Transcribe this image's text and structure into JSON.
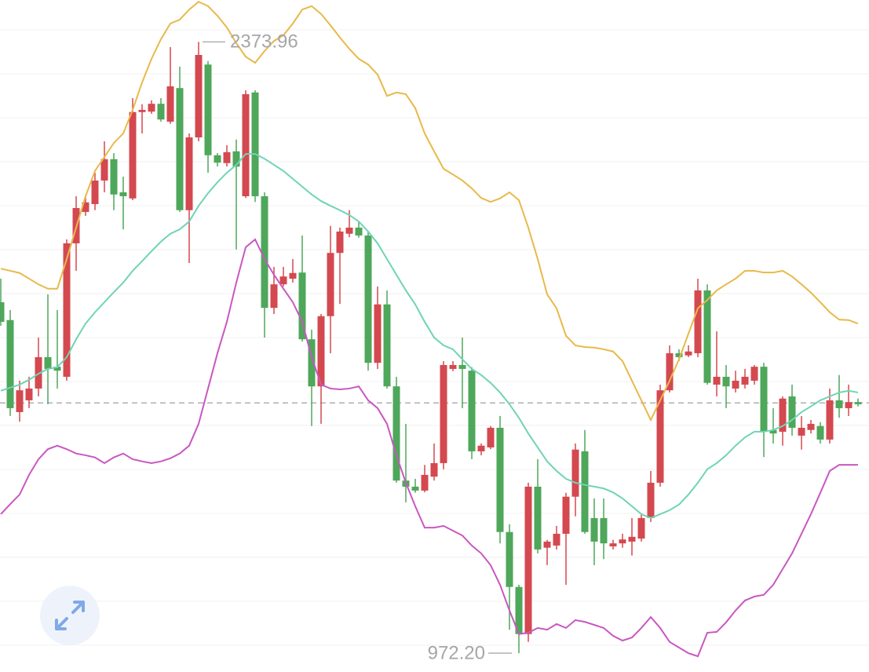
{
  "chart_data": {
    "type": "candlestick",
    "ylim": [
      929,
      2470
    ],
    "gridlines": [
      2401.6,
      2300.8,
      2200,
      2099.2,
      1998.4,
      1897.6,
      1796.8,
      1696,
      1595.2,
      1494.4,
      1393.6,
      1292.8,
      1192,
      1091.2,
      990.4
    ],
    "open": [
      1777,
      1736,
      1525,
      1552,
      1579,
      1651,
      1629,
      1606,
      1912,
      1984,
      2002,
      2056,
      2105,
      2029,
      2015,
      2213,
      2214,
      2232,
      2191,
      2268,
      1988,
      2155,
      2322,
      2114,
      2096,
      2123,
      2020,
      2258,
      2020,
      1764,
      1818,
      1831,
      1845,
      1692,
      1584,
      1745,
      1890,
      1934,
      1948,
      1930,
      1638,
      1772,
      1584,
      1368,
      1354,
      1345,
      1377,
      1408,
      1624,
      1633,
      1620,
      1435,
      1444,
      1489,
      1250,
      1124,
      1016,
      1354,
      1214,
      1219,
      1246,
      1331,
      1435,
      1282,
      1282,
      1217,
      1224,
      1228,
      1235,
      1282,
      1363,
      1575,
      1660,
      1655,
      1660,
      1804,
      1588,
      1606,
      1579,
      1588,
      1597,
      1629,
      1484,
      1480,
      1561,
      1471,
      1484,
      1493,
      1462,
      1552,
      1534,
      1548
    ],
    "high": [
      1831,
      1759,
      1597,
      1606,
      1696,
      1795,
      1759,
      1921,
      2020,
      2020,
      2074,
      2146,
      2119,
      2065,
      2245,
      2231,
      2240,
      2245,
      2362,
      2317,
      2164,
      2373.96,
      2330,
      2119,
      2137,
      2150,
      2263,
      2263,
      2029,
      1858,
      1858,
      1876,
      1930,
      1714,
      1750,
      1952,
      1948,
      1988,
      1962,
      1939,
      1813,
      1804,
      1606,
      1498,
      1372,
      1404,
      1453,
      1642,
      1642,
      1696,
      1628,
      1453,
      1493,
      1516,
      1268,
      1129,
      1363,
      1417,
      1232,
      1264,
      1340,
      1453,
      1484,
      1327,
      1327,
      1232,
      1246,
      1282,
      1291,
      1390,
      1588,
      1678,
      1669,
      1678,
      1831,
      1818,
      1710,
      1633,
      1620,
      1624,
      1633,
      1638,
      1534,
      1561,
      1588,
      1516,
      1507,
      1502,
      1579,
      1610,
      1588,
      1556
    ],
    "low": [
      1723,
      1516,
      1503,
      1534,
      1561,
      1543,
      1579,
      1597,
      1849,
      1975,
      1988,
      2029,
      1988,
      1944,
      2011,
      2164,
      2209,
      2191,
      2186,
      1984,
      1867,
      2146,
      2074,
      2088,
      2088,
      1898,
      2016,
      2007,
      1696,
      1750,
      1813,
      1822,
      1687,
      1493,
      1498,
      1660,
      1773,
      1926,
      1925,
      1620,
      1624,
      1579,
      1363,
      1318,
      1340,
      1341,
      1368,
      1394,
      1619,
      1534,
      1417,
      1426,
      1440,
      1224,
      1026,
      972.2,
      998,
      1201,
      1174,
      1210,
      1129,
      1286,
      1246,
      1174,
      1188,
      1210,
      1214,
      1196,
      1228,
      1273,
      1354,
      1570,
      1642,
      1651,
      1651,
      1588,
      1561,
      1534,
      1570,
      1579,
      1588,
      1422,
      1453,
      1448,
      1471,
      1439,
      1476,
      1453,
      1453,
      1512,
      1516,
      1538
    ],
    "close": [
      1732,
      1534,
      1575,
      1579,
      1651,
      1624,
      1620,
      1912,
      1993,
      2006,
      2056,
      2105,
      2024,
      2020,
      2213,
      2218,
      2232,
      2196,
      2272,
      1988,
      2155,
      2344,
      2114,
      2097,
      2121,
      2088,
      2254,
      2020,
      1764,
      1818,
      1836,
      1844,
      1692,
      1584,
      1745,
      1890,
      1939,
      1948,
      1930,
      1638,
      1772,
      1584,
      1368,
      1354,
      1345,
      1381,
      1408,
      1633,
      1633,
      1624,
      1435,
      1448,
      1489,
      1250,
      1124,
      1016,
      1354,
      1210,
      1228,
      1246,
      1331,
      1439,
      1250,
      1228,
      1224,
      1224,
      1233,
      1239,
      1282,
      1363,
      1575,
      1660,
      1651,
      1664,
      1804,
      1592,
      1606,
      1584,
      1597,
      1606,
      1629,
      1480,
      1476,
      1556,
      1489,
      1489,
      1498,
      1462,
      1552,
      1534,
      1548,
      1543
    ],
    "up_color": "#d4484f",
    "down_color": "#4ea75a",
    "bands": [
      {
        "color": "#e8b94a",
        "values": [
          1854,
          1849,
          1844,
          1831,
          1818,
          1808,
          1808,
          1876,
          1948,
          2020,
          2078,
          2110,
          2142,
          2164,
          2218,
          2281,
          2335,
          2380,
          2416,
          2425,
          2448,
          2466,
          2456,
          2434,
          2407,
          2371,
          2340,
          2326,
          2353,
          2376,
          2389,
          2416,
          2448,
          2456,
          2438,
          2412,
          2384,
          2358,
          2335,
          2322,
          2299,
          2250,
          2258,
          2254,
          2222,
          2164,
          2123,
          2083,
          2070,
          2056,
          2038,
          2016,
          2007,
          2015,
          2029,
          2011,
          1948,
          1876,
          1795,
          1763,
          1700,
          1678,
          1674,
          1673,
          1669,
          1664,
          1642,
          1597,
          1552,
          1507,
          1552,
          1597,
          1646,
          1705,
          1763,
          1782,
          1804,
          1818,
          1831,
          1849,
          1849,
          1845,
          1845,
          1849,
          1836,
          1818,
          1799,
          1777,
          1754,
          1737,
          1736,
          1728
        ]
      },
      {
        "color": "#6fd4b6",
        "values": [
          1574,
          1581,
          1588,
          1599,
          1613,
          1624,
          1628,
          1651,
          1692,
          1728,
          1754,
          1777,
          1800,
          1822,
          1849,
          1871,
          1894,
          1916,
          1934,
          1944,
          1962,
          1998,
          2027,
          2052,
          2074,
          2092,
          2117,
          2117,
          2106,
          2092,
          2078,
          2060,
          2042,
          2024,
          2009,
          1998,
          1988,
          1977,
          1962,
          1939,
          1912,
          1876,
          1840,
          1804,
          1772,
          1732,
          1696,
          1678,
          1669,
          1646,
          1624,
          1610,
          1592,
          1570,
          1543,
          1512,
          1476,
          1444,
          1412,
          1390,
          1372,
          1363,
          1358,
          1354,
          1350,
          1341,
          1327,
          1309,
          1291,
          1282,
          1291,
          1300,
          1313,
          1336,
          1363,
          1394,
          1408,
          1426,
          1448,
          1467,
          1480,
          1480,
          1484,
          1493,
          1507,
          1525,
          1538,
          1552,
          1561,
          1570,
          1574,
          1570
        ]
      },
      {
        "color": "#c957c1",
        "values": [
          1291,
          1314,
          1336,
          1381,
          1417,
          1440,
          1448,
          1440,
          1430,
          1426,
          1421,
          1408,
          1421,
          1430,
          1417,
          1412,
          1408,
          1412,
          1419,
          1430,
          1448,
          1498,
          1579,
          1660,
          1732,
          1822,
          1903,
          1921,
          1876,
          1840,
          1808,
          1777,
          1732,
          1651,
          1588,
          1579,
          1577,
          1579,
          1584,
          1552,
          1534,
          1498,
          1426,
          1363,
          1309,
          1260,
          1260,
          1264,
          1253,
          1242,
          1219,
          1201,
          1174,
          1129,
          1070,
          1016,
          1019,
          1030,
          1026,
          1039,
          1030,
          1048,
          1044,
          1037,
          1030,
          1012,
          1001,
          1008,
          1030,
          1055,
          1030,
          998,
          985,
          972,
          965,
          1019,
          1021,
          1043,
          1070,
          1093,
          1102,
          1106,
          1129,
          1165,
          1201,
          1246,
          1291,
          1340,
          1390,
          1404,
          1404,
          1404
        ]
      }
    ],
    "high_marker": 2373.96,
    "low_marker": {
      "value": 972.2,
      "label": "972.20"
    },
    "price_line": 1546
  }
}
